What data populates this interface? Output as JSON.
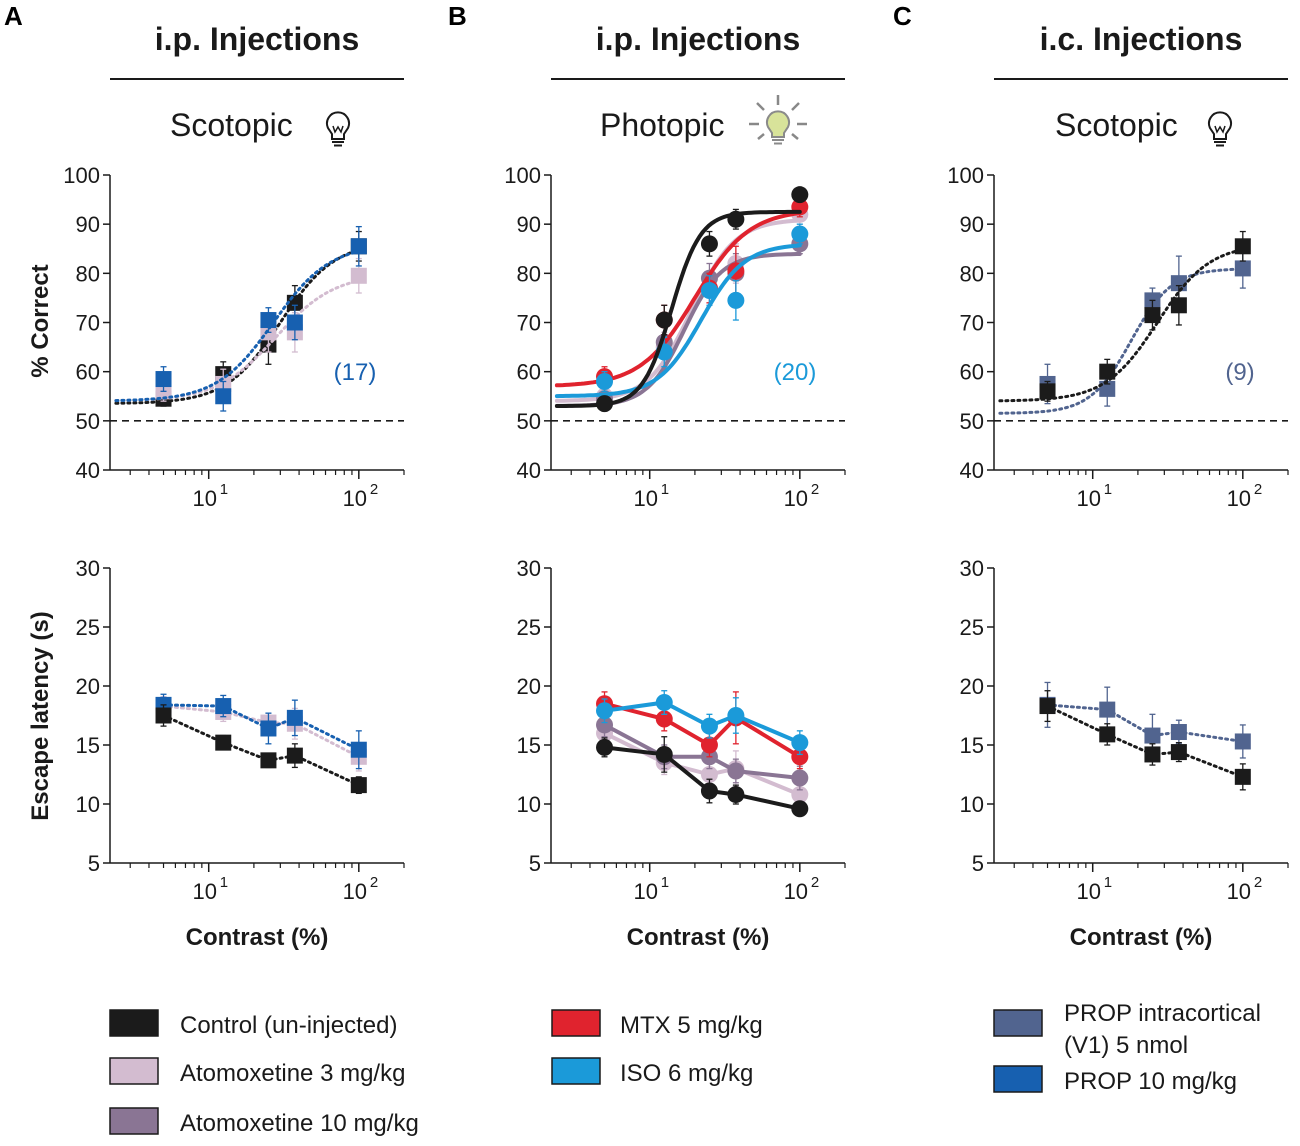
{
  "colors": {
    "control": "#1b1b1b",
    "atomox3": "#d3bcd0",
    "atomox10": "#8a7594",
    "mtx": "#e0232e",
    "iso": "#1b9ad9",
    "prop_ic": "#51648f",
    "prop10": "#1760b0"
  },
  "panels": [
    {
      "letter": "A",
      "header": "i.p. Injections",
      "condition": "Scotopic",
      "icon": "bulb-off-icon",
      "n_label": "(17)",
      "n_color": "#1760b0"
    },
    {
      "letter": "B",
      "header": "i.p. Injections",
      "condition": "Photopic",
      "icon": "bulb-on-icon",
      "n_label": "(20)",
      "n_color": "#1b9ad9"
    },
    {
      "letter": "C",
      "header": "i.c. Injections",
      "condition": "Scotopic",
      "icon": "bulb-off-icon",
      "n_label": "(9)",
      "n_color": "#51648f"
    }
  ],
  "axes": {
    "top_ylabel": "% Correct",
    "bottom_ylabel": "Escape latency (s)",
    "xlabel": "Contrast (%)",
    "x_tick_base": "10",
    "x_tick_exps": [
      "1",
      "2"
    ],
    "top_yticks": [
      "100",
      "90",
      "80",
      "70",
      "60",
      "50",
      "40"
    ],
    "bottom_yticks": [
      "30",
      "25",
      "20",
      "15",
      "10",
      "5"
    ]
  },
  "chart_data": [
    {
      "id": "A-top",
      "type": "line",
      "panel": "A",
      "title": "i.p. Injections — Scotopic",
      "xlabel": "Contrast (%)",
      "ylabel": "% Correct",
      "xscale": "log",
      "xlim": [
        2.2,
        200
      ],
      "ylim": [
        40,
        100
      ],
      "chance_level": 50,
      "x": [
        5,
        12.5,
        25,
        37.5,
        100
      ],
      "series": [
        {
          "name": "Control (un-injected)",
          "key": "control",
          "marker": "square",
          "style": "dotted",
          "values": [
            54.5,
            59.5,
            65.5,
            74,
            85.5
          ],
          "errors": [
            1.5,
            2.5,
            4,
            3.5,
            3
          ],
          "fit": {
            "bottom": 53.5,
            "top": 86.5,
            "x50": 30,
            "slope": 2.4
          }
        },
        {
          "name": "Atomoxetine 3 mg/kg",
          "key": "atomox3",
          "marker": "square",
          "style": "dotted",
          "values": [
            56,
            57.5,
            68,
            68,
            79.5
          ],
          "errors": [
            2,
            3,
            4,
            4,
            3.5
          ],
          "fit": {
            "bottom": 54,
            "top": 80,
            "x50": 28,
            "slope": 2.2
          }
        },
        {
          "name": "PROP 10 mg/kg",
          "key": "prop10",
          "marker": "square",
          "style": "dotted",
          "values": [
            58.5,
            55,
            70.5,
            70,
            85.5
          ],
          "errors": [
            2.5,
            3,
            2.5,
            3.5,
            4
          ],
          "fit": {
            "bottom": 54,
            "top": 86,
            "x50": 27,
            "slope": 2.3
          }
        }
      ]
    },
    {
      "id": "B-top",
      "type": "line",
      "panel": "B",
      "title": "i.p. Injections — Photopic",
      "xlabel": "Contrast (%)",
      "ylabel": "% Correct",
      "xscale": "log",
      "xlim": [
        2.2,
        200
      ],
      "ylim": [
        40,
        100
      ],
      "chance_level": 50,
      "x": [
        5,
        12.5,
        25,
        37.5,
        100
      ],
      "series": [
        {
          "name": "Atomoxetine 3 mg/kg",
          "key": "atomox3",
          "marker": "circle",
          "style": "solid",
          "values": [
            55,
            65,
            77,
            82,
            92
          ],
          "errors": [
            2,
            3,
            3,
            4,
            2
          ],
          "fit": {
            "bottom": 54,
            "top": 91,
            "x50": 19,
            "slope": 3
          }
        },
        {
          "name": "Atomoxetine 10 mg/kg",
          "key": "atomox10",
          "marker": "circle",
          "style": "solid",
          "values": [
            54.5,
            66,
            79,
            80,
            86
          ],
          "errors": [
            2,
            3,
            3,
            4,
            2
          ],
          "fit": {
            "bottom": 53,
            "top": 84,
            "x50": 17,
            "slope": 3.5
          }
        },
        {
          "name": "MTX 5 mg/kg",
          "key": "mtx",
          "marker": "circle",
          "style": "solid",
          "values": [
            59,
            70.5,
            77,
            80.5,
            93.5
          ],
          "errors": [
            2,
            3,
            3,
            5,
            2
          ],
          "fit": {
            "bottom": 57,
            "top": 93,
            "x50": 20,
            "slope": 2.4
          }
        },
        {
          "name": "ISO 6 mg/kg",
          "key": "iso",
          "marker": "circle",
          "style": "solid",
          "values": [
            58,
            64,
            76.5,
            74.5,
            88
          ],
          "errors": [
            2,
            3,
            3,
            4,
            2
          ],
          "fit": {
            "bottom": 55,
            "top": 86,
            "x50": 22,
            "slope": 3
          }
        },
        {
          "name": "Control (un-injected)",
          "key": "control",
          "marker": "circle",
          "style": "solid",
          "values": [
            53.5,
            70.5,
            86,
            91,
            96
          ],
          "errors": [
            1.5,
            3,
            2.5,
            2,
            1
          ],
          "fit": {
            "bottom": 53,
            "top": 92.5,
            "x50": 14,
            "slope": 4.5
          }
        }
      ]
    },
    {
      "id": "C-top",
      "type": "line",
      "panel": "C",
      "title": "i.c. Injections — Scotopic",
      "xlabel": "Contrast (%)",
      "ylabel": "% Correct",
      "xscale": "log",
      "xlim": [
        2.2,
        200
      ],
      "ylim": [
        40,
        100
      ],
      "chance_level": 50,
      "x": [
        5,
        12.5,
        25,
        37.5,
        100
      ],
      "series": [
        {
          "name": "PROP intracortical (V1) 5 nmol",
          "key": "prop_ic",
          "marker": "square",
          "style": "dotted",
          "values": [
            57.5,
            56.5,
            74.5,
            78,
            81
          ],
          "errors": [
            4,
            3.5,
            2.5,
            5.5,
            4
          ],
          "fit": {
            "bottom": 51.5,
            "top": 81,
            "x50": 18,
            "slope": 3.2
          }
        },
        {
          "name": "Control (un-injected)",
          "key": "control",
          "marker": "square",
          "style": "dotted",
          "values": [
            56,
            60,
            71.5,
            73.5,
            85.5
          ],
          "errors": [
            2,
            2.5,
            3,
            4,
            3
          ],
          "fit": {
            "bottom": 54,
            "top": 86,
            "x50": 27,
            "slope": 2.5
          }
        }
      ]
    },
    {
      "id": "A-bottom",
      "type": "line",
      "panel": "A",
      "title": "",
      "xlabel": "Contrast (%)",
      "ylabel": "Escape latency (s)",
      "xscale": "log",
      "xlim": [
        2.2,
        200
      ],
      "ylim": [
        5,
        30
      ],
      "x": [
        5,
        12.5,
        25,
        37.5,
        100
      ],
      "series": [
        {
          "name": "Atomoxetine 3 mg/kg",
          "key": "atomox3",
          "marker": "square",
          "style": "dotted",
          "values": [
            18.3,
            17.8,
            16.9,
            16.8,
            14
          ],
          "errors": [
            0.8,
            0.8,
            0.8,
            1.3,
            1.2
          ]
        },
        {
          "name": "PROP 10 mg/kg",
          "key": "prop10",
          "marker": "square",
          "style": "dotted",
          "values": [
            18.4,
            18.3,
            16.4,
            17.3,
            14.6
          ],
          "errors": [
            0.9,
            0.9,
            1.3,
            1.5,
            1.6
          ]
        },
        {
          "name": "Control (un-injected)",
          "key": "control",
          "marker": "square",
          "style": "dotted",
          "values": [
            17.5,
            15.2,
            13.7,
            14.1,
            11.6
          ],
          "errors": [
            0.9,
            0.6,
            0.6,
            1,
            0.7
          ]
        }
      ]
    },
    {
      "id": "B-bottom",
      "type": "line",
      "panel": "B",
      "title": "",
      "xlabel": "Contrast (%)",
      "ylabel": "Escape latency (s)",
      "xscale": "log",
      "xlim": [
        2.2,
        200
      ],
      "ylim": [
        5,
        30
      ],
      "x": [
        5,
        12.5,
        25,
        37.5,
        100
      ],
      "series": [
        {
          "name": "Atomoxetine 3 mg/kg",
          "key": "atomox3",
          "marker": "circle",
          "style": "solid",
          "values": [
            16,
            13.5,
            12.5,
            13,
            10.8
          ],
          "errors": [
            1,
            1,
            1,
            1.5,
            1
          ]
        },
        {
          "name": "Atomoxetine 10 mg/kg",
          "key": "atomox10",
          "marker": "circle",
          "style": "solid",
          "values": [
            16.7,
            14,
            14,
            12.8,
            12.2
          ],
          "errors": [
            1,
            1,
            1,
            1,
            1
          ]
        },
        {
          "name": "MTX 5 mg/kg",
          "key": "mtx",
          "marker": "circle",
          "style": "solid",
          "values": [
            18.5,
            17.2,
            15,
            17.3,
            14
          ],
          "errors": [
            1,
            1,
            1,
            2.2,
            1
          ]
        },
        {
          "name": "ISO 6 mg/kg",
          "key": "iso",
          "marker": "circle",
          "style": "solid",
          "values": [
            17.9,
            18.6,
            16.6,
            17.5,
            15.2
          ],
          "errors": [
            1,
            1,
            1,
            1.5,
            1
          ]
        },
        {
          "name": "Control (un-injected)",
          "key": "control",
          "marker": "circle",
          "style": "solid",
          "values": [
            14.8,
            14.2,
            11.1,
            10.8,
            9.6
          ],
          "errors": [
            0.8,
            1.5,
            1,
            0.8,
            0.6
          ]
        }
      ]
    },
    {
      "id": "C-bottom",
      "type": "line",
      "panel": "C",
      "title": "",
      "xlabel": "Contrast (%)",
      "ylabel": "Escape latency (s)",
      "xscale": "log",
      "xlim": [
        2.2,
        200
      ],
      "ylim": [
        5,
        30
      ],
      "x": [
        5,
        12.5,
        25,
        37.5,
        100
      ],
      "series": [
        {
          "name": "PROP intracortical (V1) 5 nmol",
          "key": "prop_ic",
          "marker": "square",
          "style": "dotted",
          "values": [
            18.4,
            18,
            15.8,
            16.1,
            15.3
          ],
          "errors": [
            1.9,
            1.9,
            1.8,
            1,
            1.4
          ]
        },
        {
          "name": "Control (un-injected)",
          "key": "control",
          "marker": "square",
          "style": "dotted",
          "values": [
            18.3,
            15.9,
            14.2,
            14.4,
            12.3
          ],
          "errors": [
            1.3,
            0.9,
            0.9,
            0.8,
            1.1
          ]
        }
      ]
    }
  ],
  "legend": [
    {
      "key": "control",
      "lines": [
        "Control (un-injected)"
      ]
    },
    {
      "key": "atomox3",
      "lines": [
        "Atomoxetine 3 mg/kg"
      ]
    },
    {
      "key": "atomox10",
      "lines": [
        "Atomoxetine 10 mg/kg"
      ]
    },
    {
      "key": "mtx",
      "lines": [
        "MTX 5 mg/kg"
      ]
    },
    {
      "key": "iso",
      "lines": [
        "ISO 6 mg/kg"
      ]
    },
    {
      "key": "prop_ic",
      "lines": [
        "PROP intracortical",
        "(V1) 5 nmol"
      ]
    },
    {
      "key": "prop10",
      "lines": [
        "PROP 10 mg/kg"
      ]
    }
  ]
}
